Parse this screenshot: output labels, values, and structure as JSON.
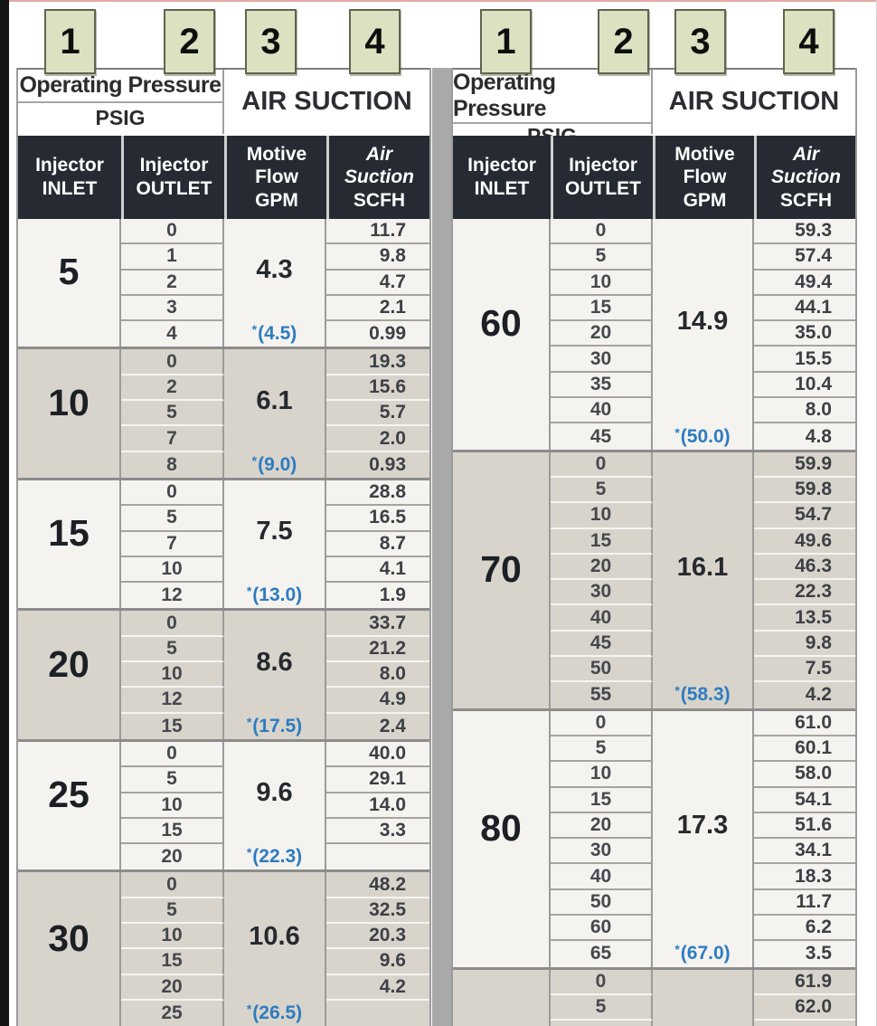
{
  "badges": [
    "1",
    "2",
    "3",
    "4"
  ],
  "columns": {
    "pressure_title": "Operating Pressure",
    "pressure_unit": "PSIG",
    "suction_title": "AIR SUCTION",
    "inlet_header": [
      "Injector",
      "INLET"
    ],
    "outlet_header": [
      "Injector",
      "OUTLET"
    ],
    "motive_header": [
      "Motive",
      "Flow",
      "GPM"
    ],
    "suction_header": [
      "Air",
      "Suction",
      "SCFH"
    ]
  },
  "colors": {
    "accent_blue": "#2e7cc0",
    "badge_green": "#dbe2c1",
    "header_dark": "#262b33",
    "row_light": "#f4f3f0",
    "row_dark": "#d8d4cc",
    "separator_gray": "#a9a9a9"
  },
  "left_table": {
    "groups": [
      {
        "inlet": "5",
        "motive": "4.3",
        "starred": "*(4.5)",
        "shade": "light",
        "rows": [
          {
            "outlet": "0",
            "scfh": "11.7"
          },
          {
            "outlet": "1",
            "scfh": "9.8"
          },
          {
            "outlet": "2",
            "scfh": "4.7"
          },
          {
            "outlet": "3",
            "scfh": "2.1"
          },
          {
            "outlet": "4",
            "scfh": "0.99"
          }
        ]
      },
      {
        "inlet": "10",
        "motive": "6.1",
        "starred": "*(9.0)",
        "shade": "dark",
        "rows": [
          {
            "outlet": "0",
            "scfh": "19.3"
          },
          {
            "outlet": "2",
            "scfh": "15.6"
          },
          {
            "outlet": "5",
            "scfh": "5.7"
          },
          {
            "outlet": "7",
            "scfh": "2.0"
          },
          {
            "outlet": "8",
            "scfh": "0.93"
          }
        ]
      },
      {
        "inlet": "15",
        "motive": "7.5",
        "starred": "*(13.0)",
        "shade": "light",
        "rows": [
          {
            "outlet": "0",
            "scfh": "28.8"
          },
          {
            "outlet": "5",
            "scfh": "16.5"
          },
          {
            "outlet": "7",
            "scfh": "8.7"
          },
          {
            "outlet": "10",
            "scfh": "4.1"
          },
          {
            "outlet": "12",
            "scfh": "1.9"
          }
        ]
      },
      {
        "inlet": "20",
        "motive": "8.6",
        "starred": "*(17.5)",
        "shade": "dark",
        "rows": [
          {
            "outlet": "0",
            "scfh": "33.7"
          },
          {
            "outlet": "5",
            "scfh": "21.2"
          },
          {
            "outlet": "10",
            "scfh": "8.0"
          },
          {
            "outlet": "12",
            "scfh": "4.9"
          },
          {
            "outlet": "15",
            "scfh": "2.4"
          }
        ]
      },
      {
        "inlet": "25",
        "motive": "9.6",
        "starred": "*(22.3)",
        "shade": "light",
        "rows": [
          {
            "outlet": "0",
            "scfh": "40.0"
          },
          {
            "outlet": "5",
            "scfh": "29.1"
          },
          {
            "outlet": "10",
            "scfh": "14.0"
          },
          {
            "outlet": "15",
            "scfh": "3.3"
          },
          {
            "outlet": "20",
            "scfh": ""
          }
        ]
      },
      {
        "inlet": "30",
        "motive": "10.6",
        "starred": "*(26.5)",
        "shade": "dark",
        "rows": [
          {
            "outlet": "0",
            "scfh": "48.2"
          },
          {
            "outlet": "5",
            "scfh": "32.5"
          },
          {
            "outlet": "10",
            "scfh": "20.3"
          },
          {
            "outlet": "15",
            "scfh": "9.6"
          },
          {
            "outlet": "20",
            "scfh": "4.2"
          },
          {
            "outlet": "25",
            "scfh": ""
          }
        ]
      }
    ]
  },
  "right_table": {
    "groups": [
      {
        "inlet": "60",
        "motive": "14.9",
        "starred": "*(50.0)",
        "shade": "light",
        "rows": [
          {
            "outlet": "0",
            "scfh": "59.3"
          },
          {
            "outlet": "5",
            "scfh": "57.4"
          },
          {
            "outlet": "10",
            "scfh": "49.4"
          },
          {
            "outlet": "15",
            "scfh": "44.1"
          },
          {
            "outlet": "20",
            "scfh": "35.0"
          },
          {
            "outlet": "30",
            "scfh": "15.5"
          },
          {
            "outlet": "35",
            "scfh": "10.4"
          },
          {
            "outlet": "40",
            "scfh": "8.0"
          },
          {
            "outlet": "45",
            "scfh": "4.8"
          }
        ]
      },
      {
        "inlet": "70",
        "motive": "16.1",
        "starred": "*(58.3)",
        "shade": "dark",
        "rows": [
          {
            "outlet": "0",
            "scfh": "59.9"
          },
          {
            "outlet": "5",
            "scfh": "59.8"
          },
          {
            "outlet": "10",
            "scfh": "54.7"
          },
          {
            "outlet": "15",
            "scfh": "49.6"
          },
          {
            "outlet": "20",
            "scfh": "46.3"
          },
          {
            "outlet": "30",
            "scfh": "22.3"
          },
          {
            "outlet": "40",
            "scfh": "13.5"
          },
          {
            "outlet": "45",
            "scfh": "9.8"
          },
          {
            "outlet": "50",
            "scfh": "7.5"
          },
          {
            "outlet": "55",
            "scfh": "4.2"
          }
        ]
      },
      {
        "inlet": "80",
        "motive": "17.3",
        "starred": "*(67.0)",
        "shade": "light",
        "rows": [
          {
            "outlet": "0",
            "scfh": "61.0"
          },
          {
            "outlet": "5",
            "scfh": "60.1"
          },
          {
            "outlet": "10",
            "scfh": "58.0"
          },
          {
            "outlet": "15",
            "scfh": "54.1"
          },
          {
            "outlet": "20",
            "scfh": "51.6"
          },
          {
            "outlet": "30",
            "scfh": "34.1"
          },
          {
            "outlet": "40",
            "scfh": "18.3"
          },
          {
            "outlet": "50",
            "scfh": "11.7"
          },
          {
            "outlet": "60",
            "scfh": "6.2"
          },
          {
            "outlet": "65",
            "scfh": "3.5"
          }
        ]
      },
      {
        "inlet": "",
        "motive": "",
        "starred": "",
        "shade": "dark",
        "rows": [
          {
            "outlet": "0",
            "scfh": "61.9"
          },
          {
            "outlet": "5",
            "scfh": "62.0"
          },
          {
            "outlet": "",
            "scfh": ""
          }
        ]
      }
    ]
  }
}
